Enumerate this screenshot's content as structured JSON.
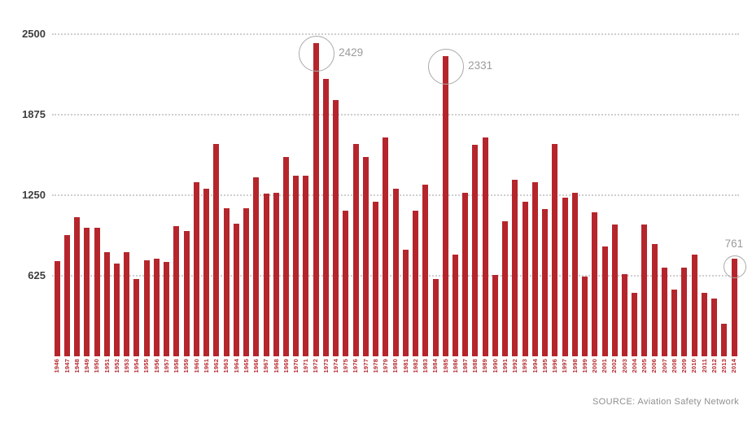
{
  "chart_data": {
    "type": "bar",
    "categories": [
      "1946",
      "1947",
      "1948",
      "1949",
      "1950",
      "1951",
      "1952",
      "1953",
      "1954",
      "1955",
      "1956",
      "1957",
      "1958",
      "1959",
      "1960",
      "1961",
      "1962",
      "1963",
      "1964",
      "1965",
      "1966",
      "1967",
      "1968",
      "1969",
      "1970",
      "1971",
      "1972",
      "1973",
      "1974",
      "1975",
      "1976",
      "1977",
      "1978",
      "1979",
      "1980",
      "1981",
      "1982",
      "1983",
      "1984",
      "1985",
      "1986",
      "1987",
      "1988",
      "1989",
      "1990",
      "1991",
      "1992",
      "1993",
      "1994",
      "1995",
      "1996",
      "1997",
      "1998",
      "1999",
      "2000",
      "2001",
      "2002",
      "2003",
      "2004",
      "2005",
      "2006",
      "2007",
      "2008",
      "2009",
      "2010",
      "2011",
      "2012",
      "2013",
      "2014"
    ],
    "values": [
      740,
      940,
      1080,
      1000,
      1000,
      810,
      720,
      810,
      600,
      745,
      760,
      730,
      1010,
      970,
      1350,
      1300,
      1650,
      1150,
      1030,
      1150,
      1390,
      1260,
      1270,
      1550,
      1400,
      1400,
      2429,
      2150,
      1990,
      1130,
      1650,
      1550,
      1200,
      1700,
      1300,
      830,
      1130,
      1330,
      600,
      2331,
      790,
      1270,
      1640,
      1700,
      630,
      1050,
      1370,
      1200,
      1350,
      1140,
      1650,
      1230,
      1270,
      620,
      1120,
      850,
      1020,
      640,
      490,
      1020,
      870,
      690,
      520,
      690,
      790,
      490,
      450,
      250,
      761
    ],
    "xlabel": "",
    "ylabel": "",
    "ylim": [
      0,
      2500
    ],
    "y_ticks": [
      625,
      1250,
      1875,
      2500
    ],
    "grid": "horizontal-dotted",
    "legend": "none",
    "annotations": [
      {
        "year": "1972",
        "label": "2429",
        "placement": "right"
      },
      {
        "year": "1985",
        "label": "2331",
        "placement": "right"
      },
      {
        "year": "2014",
        "label": "761",
        "placement": "above"
      }
    ]
  },
  "source": {
    "label": "SOURCE: Aviation Safety Network"
  },
  "colors": {
    "bar": "#b5262c",
    "axis_text": "#3d3d3d",
    "grid": "#cfcfcf",
    "annotation_text": "#9b9b9b",
    "annotation_line": "#a9a9a9",
    "source_text": "#8f8f8f",
    "background": "#ffffff"
  }
}
